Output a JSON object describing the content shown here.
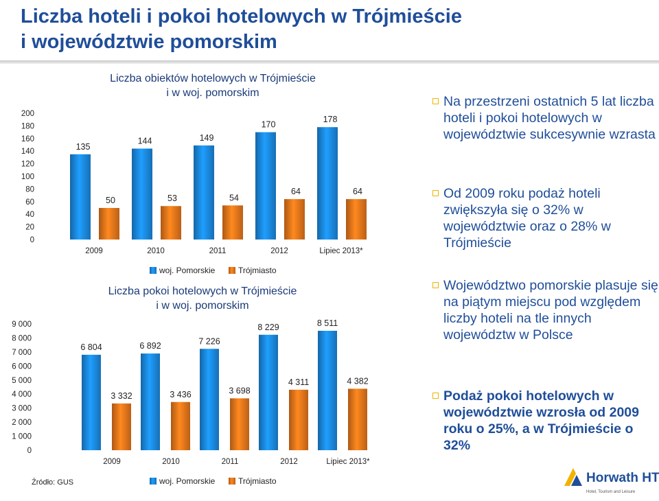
{
  "title": [
    "Liczba hoteli i pokoi hotelowych w Trójmieście",
    "i województwie pomorskim"
  ],
  "chart_data": [
    {
      "type": "bar",
      "title": [
        "Liczba obiektów hotelowych w Trójmieście",
        "i w woj. pomorskim"
      ],
      "categories": [
        "2009",
        "2010",
        "2011",
        "2012",
        "Lipiec 2013*"
      ],
      "series": [
        {
          "name": "woj. Pomorskie",
          "values": [
            135,
            144,
            149,
            170,
            178
          ],
          "labels": [
            "135",
            "144",
            "149",
            "170",
            "178"
          ],
          "color": "#1c8ee8"
        },
        {
          "name": "Trójmiasto",
          "values": [
            50,
            53,
            54,
            64,
            64
          ],
          "labels": [
            "50",
            "53",
            "54",
            "64",
            "64"
          ],
          "color": "#f07a1c"
        }
      ],
      "ylim": [
        0,
        200
      ],
      "yticks": [
        0,
        20,
        40,
        60,
        80,
        100,
        120,
        140,
        160,
        180,
        200
      ],
      "yticklabels": [
        "0",
        "20",
        "40",
        "60",
        "80",
        "100",
        "120",
        "140",
        "160",
        "180",
        "200"
      ],
      "grid": false,
      "legend": "bottom"
    },
    {
      "type": "bar",
      "title": [
        "Liczba pokoi hotelowych w Trójmieście",
        "i w  woj. pomorskim"
      ],
      "categories": [
        "2009",
        "2010",
        "2011",
        "2012",
        "Lipiec 2013*"
      ],
      "series": [
        {
          "name": "woj. Pomorskie",
          "values": [
            6804,
            6892,
            7226,
            8229,
            8511
          ],
          "labels": [
            "6 804",
            "6 892",
            "7 226",
            "8 229",
            "8 511"
          ],
          "color": "#1c8ee8"
        },
        {
          "name": "Trójmiasto",
          "values": [
            3332,
            3436,
            3698,
            4311,
            4382
          ],
          "labels": [
            "3 332",
            "3 436",
            "3 698",
            "4 311",
            "4 382"
          ],
          "color": "#f07a1c"
        }
      ],
      "ylim": [
        0,
        9000
      ],
      "yticks": [
        0,
        1000,
        2000,
        3000,
        4000,
        5000,
        6000,
        7000,
        8000,
        9000
      ],
      "yticklabels": [
        "0",
        "1 000",
        "2 000",
        "3 000",
        "4 000",
        "5 000",
        "6 000",
        "7 000",
        "8 000",
        "9 000"
      ],
      "grid": false,
      "legend": "bottom"
    }
  ],
  "bullets": [
    "Na przestrzeni ostatnich 5 lat liczba hoteli i pokoi hotelowych w województwie sukcesywnie wzrasta",
    "Od 2009 roku podaż hoteli zwiększyła się o 32% w województwie oraz o 28% w Trójmieście",
    "Województwo pomorskie plasuje się na piątym miejscu pod względem liczby hoteli na tle innych województw w Polsce",
    "Podaż pokoi hotelowych w województwie wzrosła od 2009 roku o 25%, a w Trójmieście o 32%"
  ],
  "source": "Źródło: GUS",
  "logo": {
    "name": "Horwath HTL",
    "tagline": "Hotel, Tourism and Leisure",
    "icon": "horwath-logo-icon",
    "color": "#1f4e99",
    "accent": "#f2b200"
  }
}
